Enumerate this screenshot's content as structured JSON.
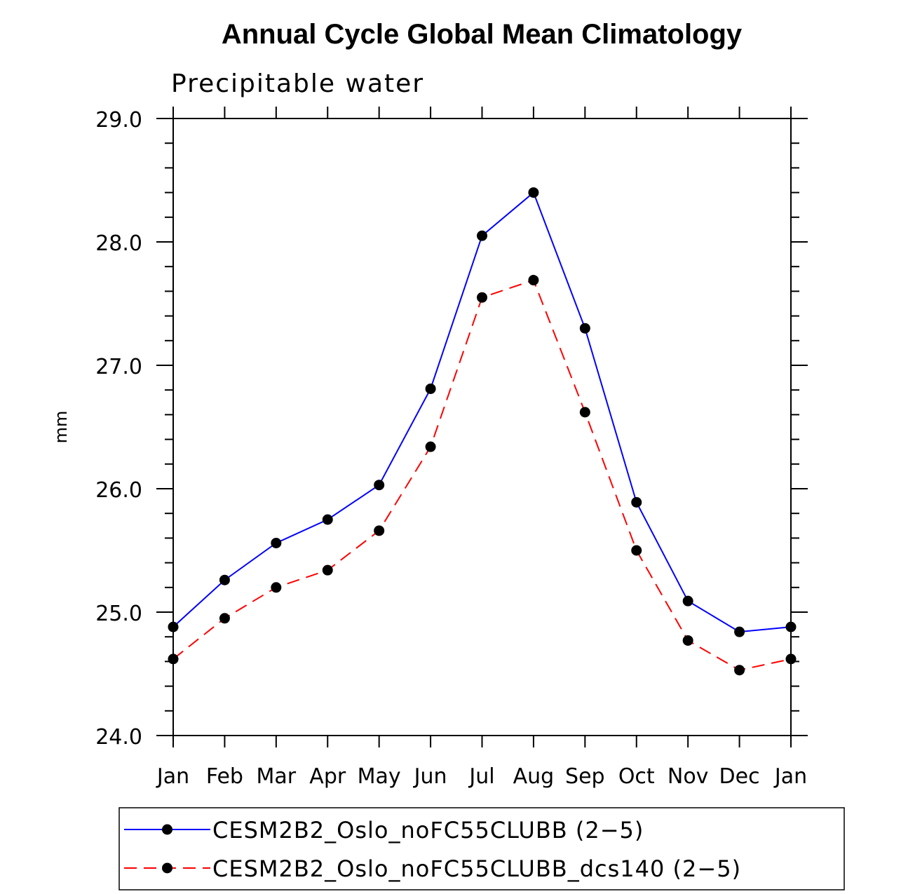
{
  "chart_data": {
    "type": "line",
    "title": "Annual Cycle Global Mean Climatology",
    "subtitle": "Precipitable water",
    "xlabel": "",
    "ylabel": "mm",
    "categories": [
      "Jan",
      "Feb",
      "Mar",
      "Apr",
      "May",
      "Jun",
      "Jul",
      "Aug",
      "Sep",
      "Oct",
      "Nov",
      "Dec",
      "Jan"
    ],
    "ylim": [
      24.0,
      29.0
    ],
    "yticks": [
      "24.0",
      "25.0",
      "26.0",
      "27.0",
      "28.0",
      "29.0"
    ],
    "grid": false,
    "legend_position": "bottom",
    "series": [
      {
        "name": "CESM2B2_Oslo_noFC55CLUBB (2−5)",
        "color": "#0000ff",
        "dash": "solid",
        "values": [
          24.88,
          25.26,
          25.56,
          25.75,
          26.03,
          26.81,
          28.05,
          28.4,
          27.3,
          25.89,
          25.09,
          24.84,
          24.88
        ]
      },
      {
        "name": "CESM2B2_Oslo_noFC55CLUBB_dcs140 (2−5)",
        "color": "#ff0000",
        "dash": "dashed",
        "values": [
          24.62,
          24.95,
          25.2,
          25.34,
          25.66,
          26.34,
          27.55,
          27.69,
          26.62,
          25.5,
          24.77,
          24.53,
          24.62
        ]
      }
    ]
  }
}
